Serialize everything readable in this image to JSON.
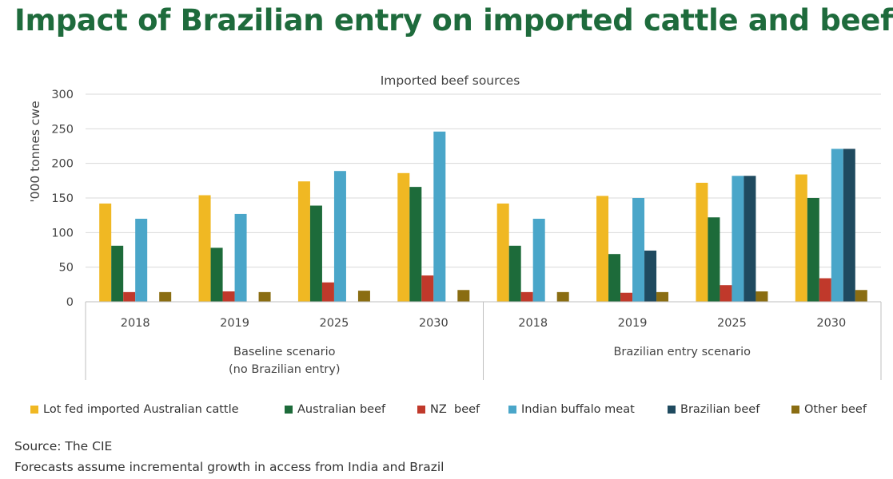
{
  "title": "Impact of Brazilian entry on imported cattle and beef",
  "footer": {
    "source": "Source: The CIE",
    "note": "Forecasts assume incremental growth in access from India and Brazil"
  },
  "chart_data": {
    "type": "bar",
    "title": "Imported beef sources",
    "ylabel": "'000 tonnes cwe",
    "xlabel": "",
    "ylim": [
      0,
      300
    ],
    "yticks": [
      0,
      50,
      100,
      150,
      200,
      250,
      300
    ],
    "grid": true,
    "legend_position": "bottom",
    "groups": [
      {
        "label": "Baseline scenario\n(no Brazilian entry)",
        "categories": [
          "2018",
          "2019",
          "2025",
          "2030"
        ]
      },
      {
        "label": "Brazilian entry scenario",
        "categories": [
          "2018",
          "2019",
          "2025",
          "2030"
        ]
      }
    ],
    "categories": [
      "2018",
      "2019",
      "2025",
      "2030",
      "2018",
      "2019",
      "2025",
      "2030"
    ],
    "series": [
      {
        "name": "Lot fed imported Australian cattle",
        "color": "#f0b823",
        "values": [
          142,
          154,
          174,
          186,
          142,
          153,
          172,
          184
        ]
      },
      {
        "name": "Australian beef",
        "color": "#1d6b3a",
        "values": [
          81,
          78,
          139,
          166,
          81,
          69,
          122,
          150
        ]
      },
      {
        "name": "NZ  beef",
        "color": "#c0392b",
        "values": [
          14,
          15,
          28,
          38,
          14,
          13,
          24,
          34
        ]
      },
      {
        "name": "Indian buffalo meat",
        "color": "#4aa6c9",
        "values": [
          120,
          127,
          189,
          246,
          120,
          150,
          182,
          221
        ]
      },
      {
        "name": "Brazilian beef",
        "color": "#1f4a5f",
        "values": [
          0,
          0,
          0,
          0,
          0,
          74,
          182,
          221
        ]
      },
      {
        "name": "Other beef",
        "color": "#8a6d12",
        "values": [
          14,
          14,
          16,
          17,
          14,
          14,
          15,
          17
        ]
      }
    ]
  }
}
